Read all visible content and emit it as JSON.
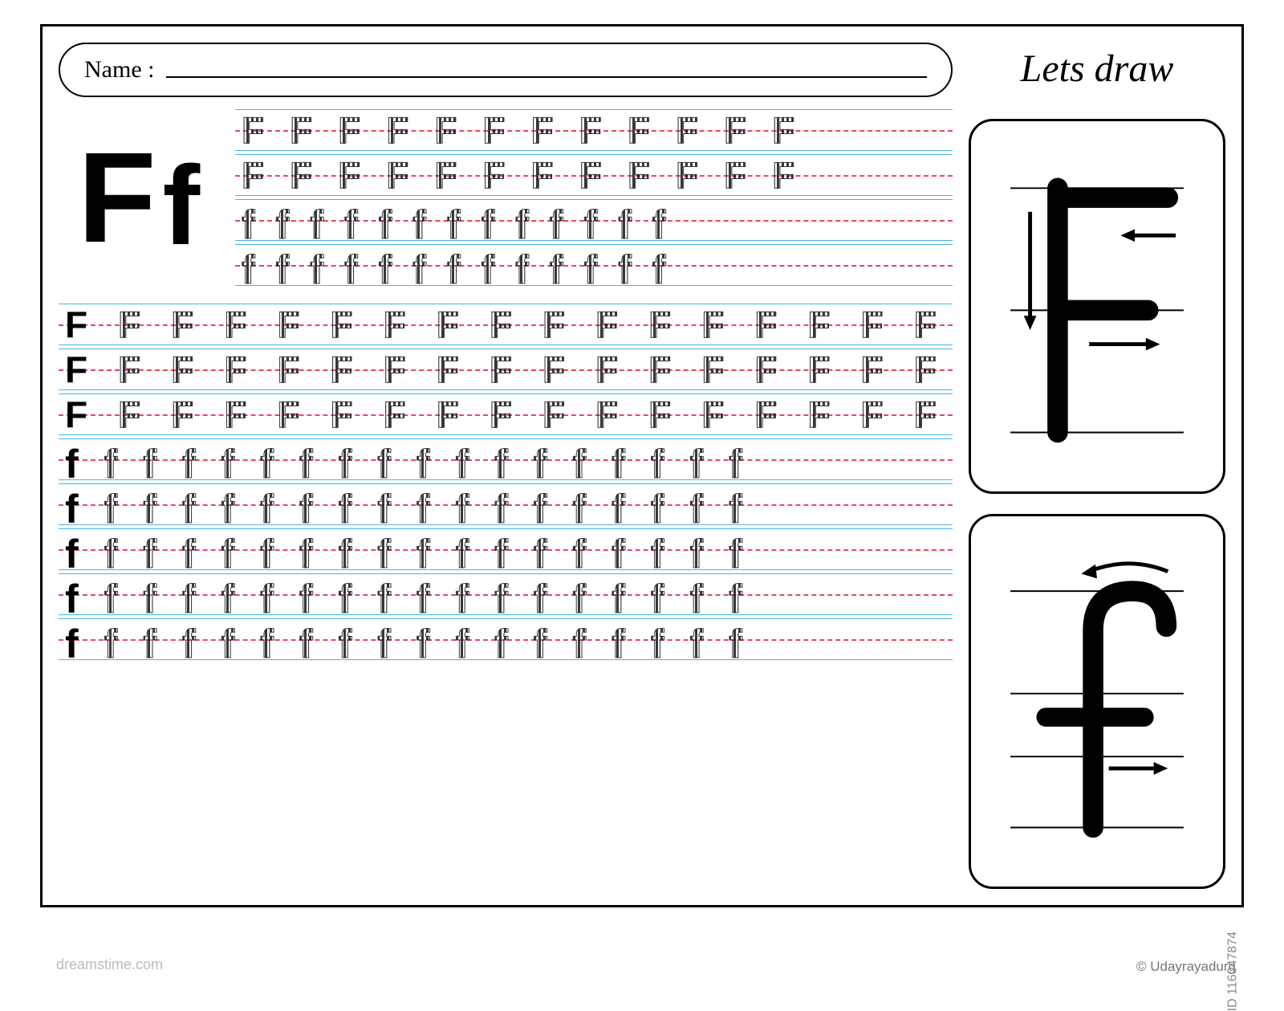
{
  "name_label": "Name :",
  "title": "Lets draw",
  "letter_upper": "F",
  "letter_lower": "f",
  "colors": {
    "guide_line": "#4bb4e6",
    "mid_line": "#e8475b",
    "border": "#000000",
    "background": "#ffffff",
    "watermark": "#bbbbbb",
    "credit": "#888888"
  },
  "top_rows": [
    {
      "letter": "F",
      "count": 12,
      "first_solid": false
    },
    {
      "letter": "F",
      "count": 12,
      "first_solid": false
    },
    {
      "letter": "f",
      "count": 13,
      "first_solid": false
    },
    {
      "letter": "f",
      "count": 13,
      "first_solid": false
    }
  ],
  "bottom_rows": [
    {
      "letter": "F",
      "count": 17,
      "first_solid": true
    },
    {
      "letter": "F",
      "count": 17,
      "first_solid": true
    },
    {
      "letter": "F",
      "count": 17,
      "first_solid": true
    },
    {
      "letter": "f",
      "count": 18,
      "first_solid": true
    },
    {
      "letter": "f",
      "count": 18,
      "first_solid": true
    },
    {
      "letter": "f",
      "count": 18,
      "first_solid": true
    },
    {
      "letter": "f",
      "count": 18,
      "first_solid": true
    },
    {
      "letter": "f",
      "count": 18,
      "first_solid": true
    }
  ],
  "guide_upper": {
    "strokes": [
      {
        "type": "vertical",
        "arrow": "down"
      },
      {
        "type": "horizontal-top",
        "arrow": "left"
      },
      {
        "type": "horizontal-mid",
        "arrow": "right"
      }
    ]
  },
  "guide_lower": {
    "strokes": [
      {
        "type": "hook",
        "arrow": "left-curve"
      },
      {
        "type": "cross",
        "arrow": "right"
      }
    ]
  },
  "watermark_text": "dreamstime.com",
  "credit_text": "© Udayrayadurg",
  "image_id": "ID 116047874"
}
